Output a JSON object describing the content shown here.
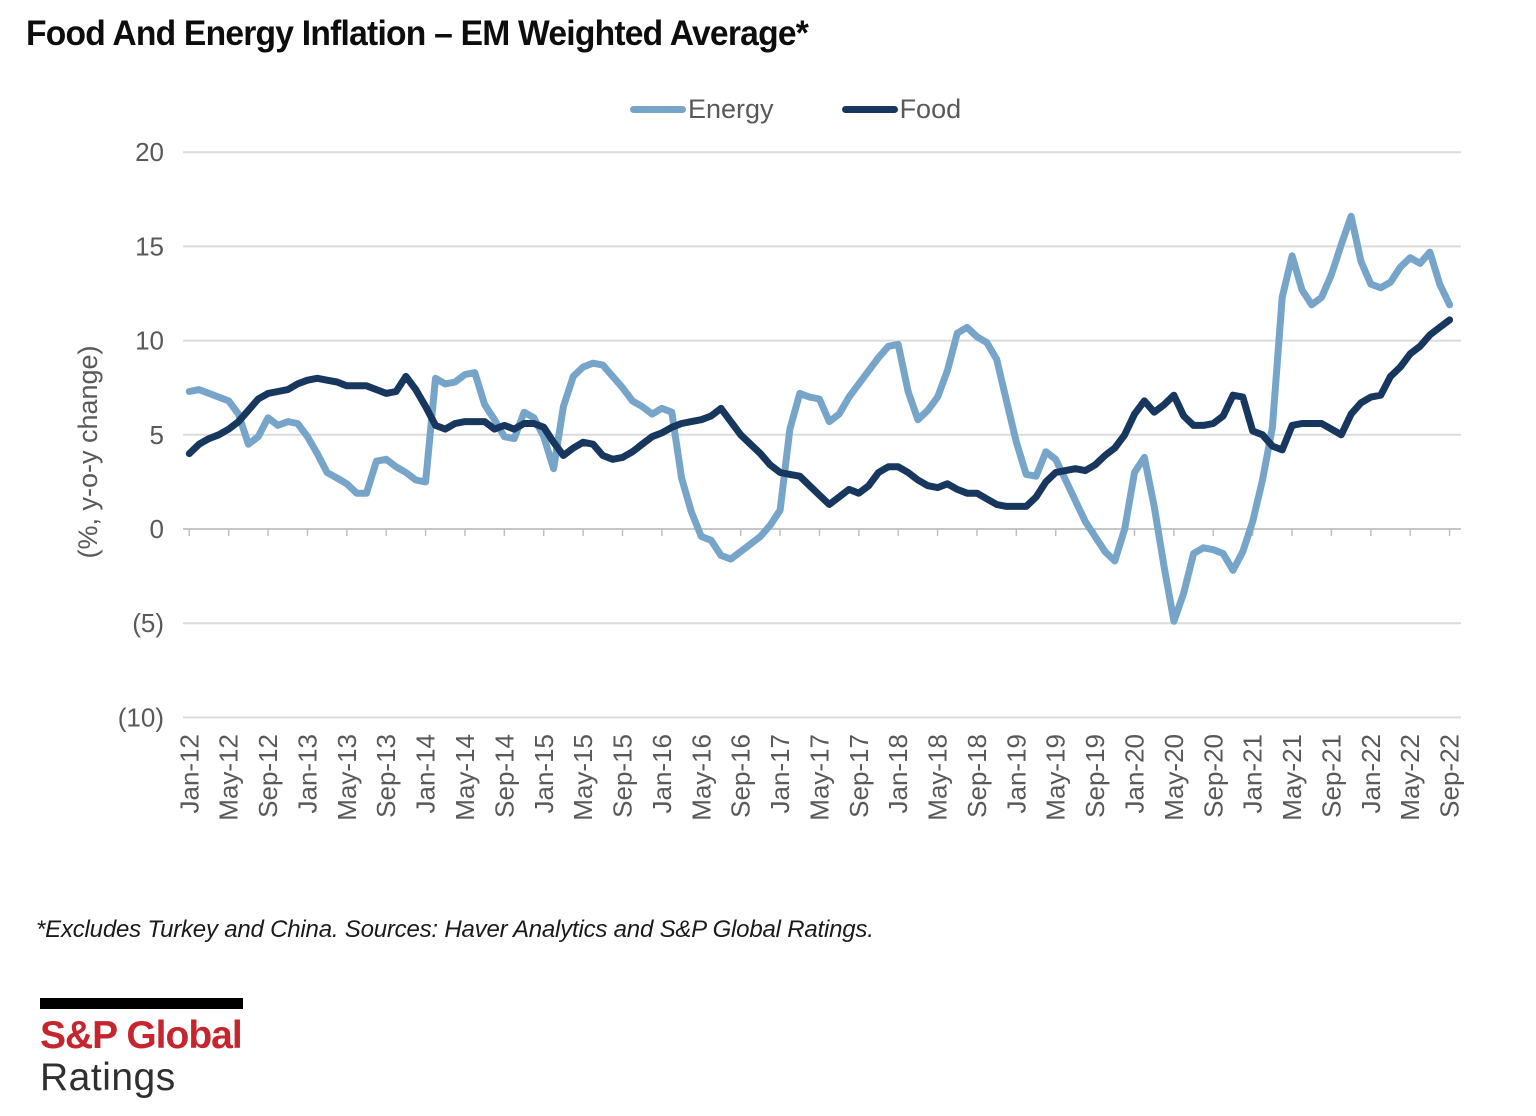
{
  "title": "Food And Energy Inflation – EM Weighted Average*",
  "legend": {
    "energy_label": "Energy",
    "food_label": "Food"
  },
  "colors": {
    "energy": "#77A5C9",
    "food": "#17375E",
    "gridline": "#DCDCDC",
    "zero_axis": "#C6C6C6",
    "axis_text": "#595959",
    "logo_red": "#C7252D"
  },
  "y_axis": {
    "title": "(%, y-o-y change)",
    "tick_labels": [
      "20",
      "15",
      "10",
      "5",
      "0",
      "(5)",
      "(10)"
    ],
    "tick_values": [
      20,
      15,
      10,
      5,
      0,
      -5,
      -10
    ]
  },
  "x_axis": {
    "tick_labels": [
      "Jan-12",
      "May-12",
      "Sep-12",
      "Jan-13",
      "May-13",
      "Sep-13",
      "Jan-14",
      "May-14",
      "Sep-14",
      "Jan-15",
      "May-15",
      "Sep-15",
      "Jan-16",
      "May-16",
      "Sep-16",
      "Jan-17",
      "May-17",
      "Sep-17",
      "Jan-18",
      "May-18",
      "Sep-18",
      "Jan-19",
      "May-19",
      "Sep-19",
      "Jan-20",
      "May-20",
      "Sep-20",
      "Jan-21",
      "May-21",
      "Sep-21",
      "Jan-22",
      "May-22",
      "Sep-22"
    ]
  },
  "footnote": "*Excludes Turkey and China. Sources: Haver Analytics and S&P Global Ratings.",
  "logo": {
    "line1": "S&P Global",
    "line2": "Ratings"
  },
  "chart_data": {
    "type": "line",
    "x_start": "Jan-12",
    "x_end": "Sep-22",
    "x_interval": "monthly",
    "x_tick_step_months": 4,
    "ylim": [
      -10,
      20
    ],
    "grid": "horizontal",
    "legend_position": "top",
    "ylabel": "(%, y-o-y change)",
    "series": [
      {
        "name": "Energy",
        "color": "#77A5C9",
        "values": [
          7.3,
          7.4,
          7.2,
          7.0,
          6.8,
          6.1,
          4.5,
          4.9,
          5.9,
          5.5,
          5.7,
          5.6,
          4.9,
          4.0,
          3.0,
          2.7,
          2.4,
          1.9,
          1.9,
          3.6,
          3.7,
          3.3,
          3.0,
          2.6,
          2.5,
          8.0,
          7.7,
          7.8,
          8.2,
          8.3,
          6.6,
          5.8,
          4.9,
          4.8,
          6.2,
          5.9,
          4.9,
          3.2,
          6.5,
          8.1,
          8.6,
          8.8,
          8.7,
          8.1,
          7.5,
          6.8,
          6.5,
          6.1,
          6.4,
          6.2,
          2.7,
          0.9,
          -0.4,
          -0.6,
          -1.4,
          -1.6,
          -1.2,
          -0.8,
          -0.4,
          0.2,
          1.0,
          5.3,
          7.2,
          7.0,
          6.9,
          5.7,
          6.1,
          7.0,
          7.7,
          8.4,
          9.1,
          9.7,
          9.8,
          7.3,
          5.8,
          6.3,
          7.0,
          8.4,
          10.4,
          10.7,
          10.2,
          9.9,
          9.0,
          6.8,
          4.6,
          2.9,
          2.8,
          4.1,
          3.7,
          2.6,
          1.5,
          0.4,
          -0.4,
          -1.2,
          -1.7,
          0.0,
          3.0,
          3.8,
          1.2,
          -2.0,
          -4.9,
          -3.4,
          -1.3,
          -1.0,
          -1.1,
          -1.3,
          -2.2,
          -1.2,
          0.4,
          2.6,
          5.4,
          12.3,
          14.5,
          12.7,
          11.9,
          12.3,
          13.5,
          15.1,
          16.6,
          14.2,
          13.0,
          12.8,
          13.1,
          13.9,
          14.4,
          14.1,
          14.7,
          13.0,
          11.9
        ]
      },
      {
        "name": "Food",
        "color": "#17375E",
        "values": [
          4.0,
          4.5,
          4.8,
          5.0,
          5.3,
          5.7,
          6.3,
          6.9,
          7.2,
          7.3,
          7.4,
          7.7,
          7.9,
          8.0,
          7.9,
          7.8,
          7.6,
          7.6,
          7.6,
          7.4,
          7.2,
          7.3,
          8.1,
          7.4,
          6.5,
          5.5,
          5.3,
          5.6,
          5.7,
          5.7,
          5.7,
          5.3,
          5.5,
          5.3,
          5.6,
          5.6,
          5.4,
          4.6,
          3.9,
          4.3,
          4.6,
          4.5,
          3.9,
          3.7,
          3.8,
          4.1,
          4.5,
          4.9,
          5.1,
          5.4,
          5.6,
          5.7,
          5.8,
          6.0,
          6.4,
          5.7,
          5.0,
          4.5,
          4.0,
          3.4,
          3.0,
          2.9,
          2.8,
          2.3,
          1.8,
          1.3,
          1.7,
          2.1,
          1.9,
          2.3,
          3.0,
          3.3,
          3.3,
          3.0,
          2.6,
          2.3,
          2.2,
          2.4,
          2.1,
          1.9,
          1.9,
          1.6,
          1.3,
          1.2,
          1.2,
          1.2,
          1.7,
          2.5,
          3.0,
          3.1,
          3.2,
          3.1,
          3.4,
          3.9,
          4.3,
          5.0,
          6.1,
          6.8,
          6.2,
          6.6,
          7.1,
          6.0,
          5.5,
          5.5,
          5.6,
          6.0,
          7.1,
          7.0,
          5.2,
          5.0,
          4.4,
          4.2,
          5.5,
          5.6,
          5.6,
          5.6,
          5.3,
          5.0,
          6.1,
          6.7,
          7.0,
          7.1,
          8.1,
          8.6,
          9.3,
          9.7,
          10.3,
          10.7,
          11.1
        ]
      }
    ]
  }
}
